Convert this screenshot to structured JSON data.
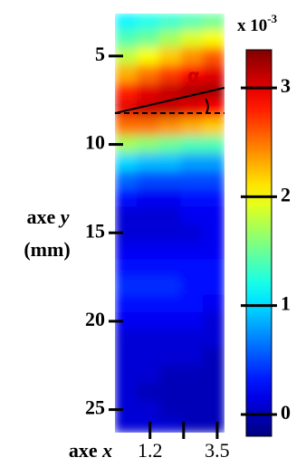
{
  "chart_data": {
    "type": "heatmap",
    "ylabel": "axe",
    "ylabel_var": "y",
    "ylabel_unit": "(mm)",
    "xlabel": "axe",
    "xlabel_var": "x",
    "xedges": [
      0,
      0.75,
      1.5,
      2.25,
      3,
      3.75
    ],
    "yedges": [
      2.6,
      3.5,
      4.5,
      5.5,
      6.5,
      7.5,
      8.5,
      9.5,
      10.5,
      11.5,
      12.5,
      13.5,
      14.5,
      15.5,
      16.5,
      17.5,
      18.5,
      19.5,
      20.5,
      21.5,
      22.5,
      23.5,
      24.5,
      25.5,
      26.3
    ],
    "z": [
      [
        1.1,
        1.2,
        1.3,
        1.4,
        1.5
      ],
      [
        1.4,
        1.5,
        1.7,
        1.9,
        2.0
      ],
      [
        1.8,
        2.0,
        2.2,
        2.4,
        2.6
      ],
      [
        2.3,
        2.5,
        2.7,
        2.9,
        3.0
      ],
      [
        2.8,
        3.0,
        3.1,
        3.2,
        3.2
      ],
      [
        3.0,
        3.1,
        3.1,
        3.0,
        2.9
      ],
      [
        2.5,
        2.5,
        2.4,
        2.3,
        2.2
      ],
      [
        1.7,
        1.6,
        1.5,
        1.4,
        1.4
      ],
      [
        1.0,
        0.9,
        0.9,
        0.8,
        0.8
      ],
      [
        0.6,
        0.5,
        0.5,
        0.5,
        0.5
      ],
      [
        0.3,
        0.2,
        0.2,
        0.3,
        0.3
      ],
      [
        0.1,
        0.1,
        0.1,
        0.2,
        0.2
      ],
      [
        0.1,
        0.1,
        0.1,
        0.1,
        0.2
      ],
      [
        0.2,
        0.2,
        0.2,
        0.2,
        0.2
      ],
      [
        0.3,
        0.3,
        0.3,
        0.3,
        0.3
      ],
      [
        0.4,
        0.4,
        0.4,
        0.3,
        0.3
      ],
      [
        0.3,
        0.3,
        0.3,
        0.3,
        0.2
      ],
      [
        0.2,
        0.2,
        0.2,
        0.2,
        0.1
      ],
      [
        0.1,
        0.1,
        0.1,
        0.1,
        0.1
      ],
      [
        0.1,
        0.1,
        0.1,
        0.1,
        0.0
      ],
      [
        0.1,
        0.1,
        0.0,
        0.0,
        0.0
      ],
      [
        0.1,
        0.0,
        0.0,
        0.0,
        0.0
      ],
      [
        0.1,
        0.1,
        0.0,
        0.0,
        0.0
      ],
      [
        0.1,
        0.1,
        0.1,
        0.0,
        0.0
      ]
    ],
    "xlim": [
      0,
      3.75
    ],
    "xticks": [
      1.2,
      3.5
    ],
    "xticks_unlabeled": [
      2.35
    ],
    "ylim": [
      2.6,
      26.3
    ],
    "yticks": [
      5,
      10,
      15,
      20,
      25
    ],
    "y_inverted": true,
    "colormap": "jet",
    "clim": [
      -0.2,
      3.35
    ],
    "cticks": [
      0,
      1,
      2,
      3
    ],
    "colorbar_label": "x 10",
    "colorbar_exponent": "-3",
    "annotation": "α"
  }
}
